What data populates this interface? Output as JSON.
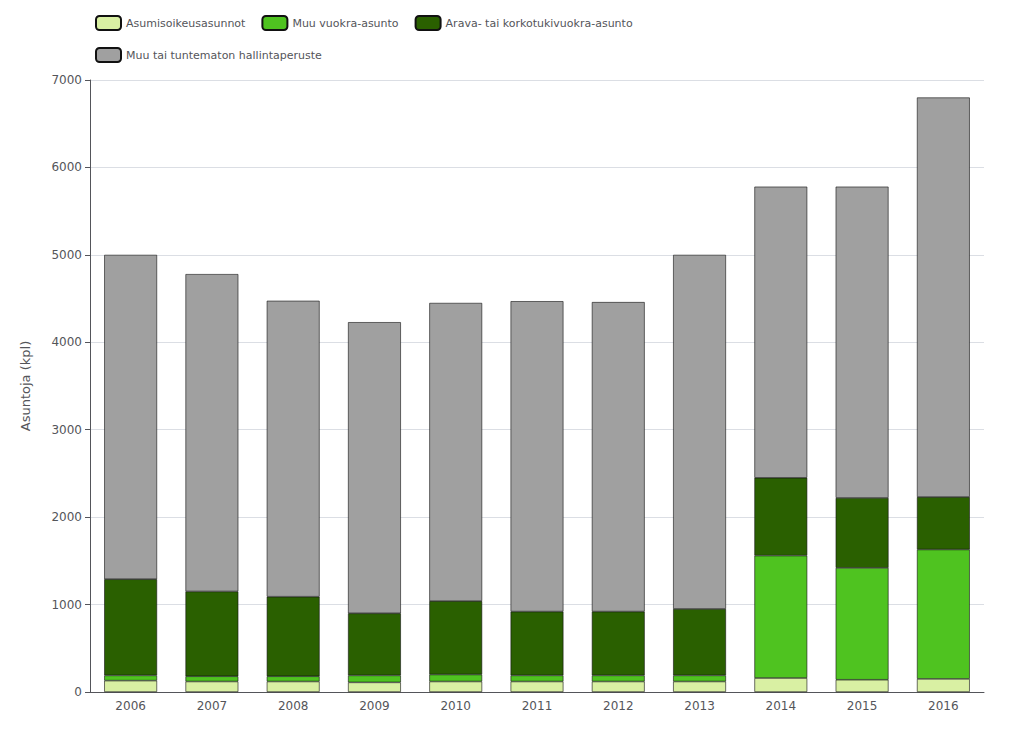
{
  "chart_data": {
    "type": "bar",
    "stacked": true,
    "categories": [
      "2006",
      "2007",
      "2008",
      "2009",
      "2010",
      "2011",
      "2012",
      "2013",
      "2014",
      "2015",
      "2016"
    ],
    "series": [
      {
        "name": "Asumisoikeusasunnot",
        "color": "#d9f0a3",
        "values": [
          130,
          120,
          120,
          110,
          120,
          120,
          120,
          120,
          160,
          140,
          150
        ]
      },
      {
        "name": "Muu vuokra-asunto",
        "color": "#4fc320",
        "values": [
          60,
          60,
          60,
          80,
          80,
          70,
          70,
          70,
          1400,
          1280,
          1480
        ]
      },
      {
        "name": "Arava- tai korkotukivuokra-asunto",
        "color": "#2a6000",
        "values": [
          1100,
          970,
          910,
          710,
          840,
          730,
          730,
          760,
          890,
          800,
          600
        ]
      },
      {
        "name": "Muu tai tuntematon hallintaperuste",
        "color": "#a0a0a0",
        "values": [
          3710,
          3630,
          3385,
          3330,
          3410,
          3550,
          3540,
          4050,
          3330,
          3560,
          4570
        ]
      }
    ],
    "ylabel": "Asuntoja (kpl)",
    "ylim": [
      0,
      7000
    ],
    "yticks": [
      0,
      1000,
      2000,
      3000,
      4000,
      5000,
      6000,
      7000
    ],
    "grid": true,
    "legend": "upper left"
  }
}
